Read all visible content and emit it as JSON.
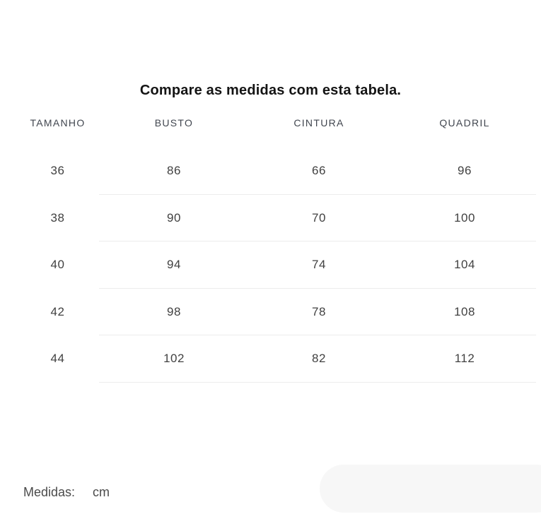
{
  "title": "Compare as medidas com esta tabela.",
  "table": {
    "columns": [
      "TAMANHO",
      "BUSTO",
      "CINTURA",
      "QUADRIL"
    ],
    "rows": [
      [
        "36",
        "86",
        "66",
        "96"
      ],
      [
        "38",
        "90",
        "70",
        "100"
      ],
      [
        "40",
        "94",
        "74",
        "104"
      ],
      [
        "42",
        "98",
        "78",
        "108"
      ],
      [
        "44",
        "102",
        "82",
        "112"
      ]
    ]
  },
  "footer": {
    "label": "Medidas:",
    "unit": "cm"
  },
  "colors": {
    "title": "#141414",
    "header_text": "#41464f",
    "cell_text": "#414141",
    "divider": "#ececec",
    "footer_text": "#4b4b4b",
    "corner_pill": "#f7f7f7",
    "background": "#ffffff"
  }
}
